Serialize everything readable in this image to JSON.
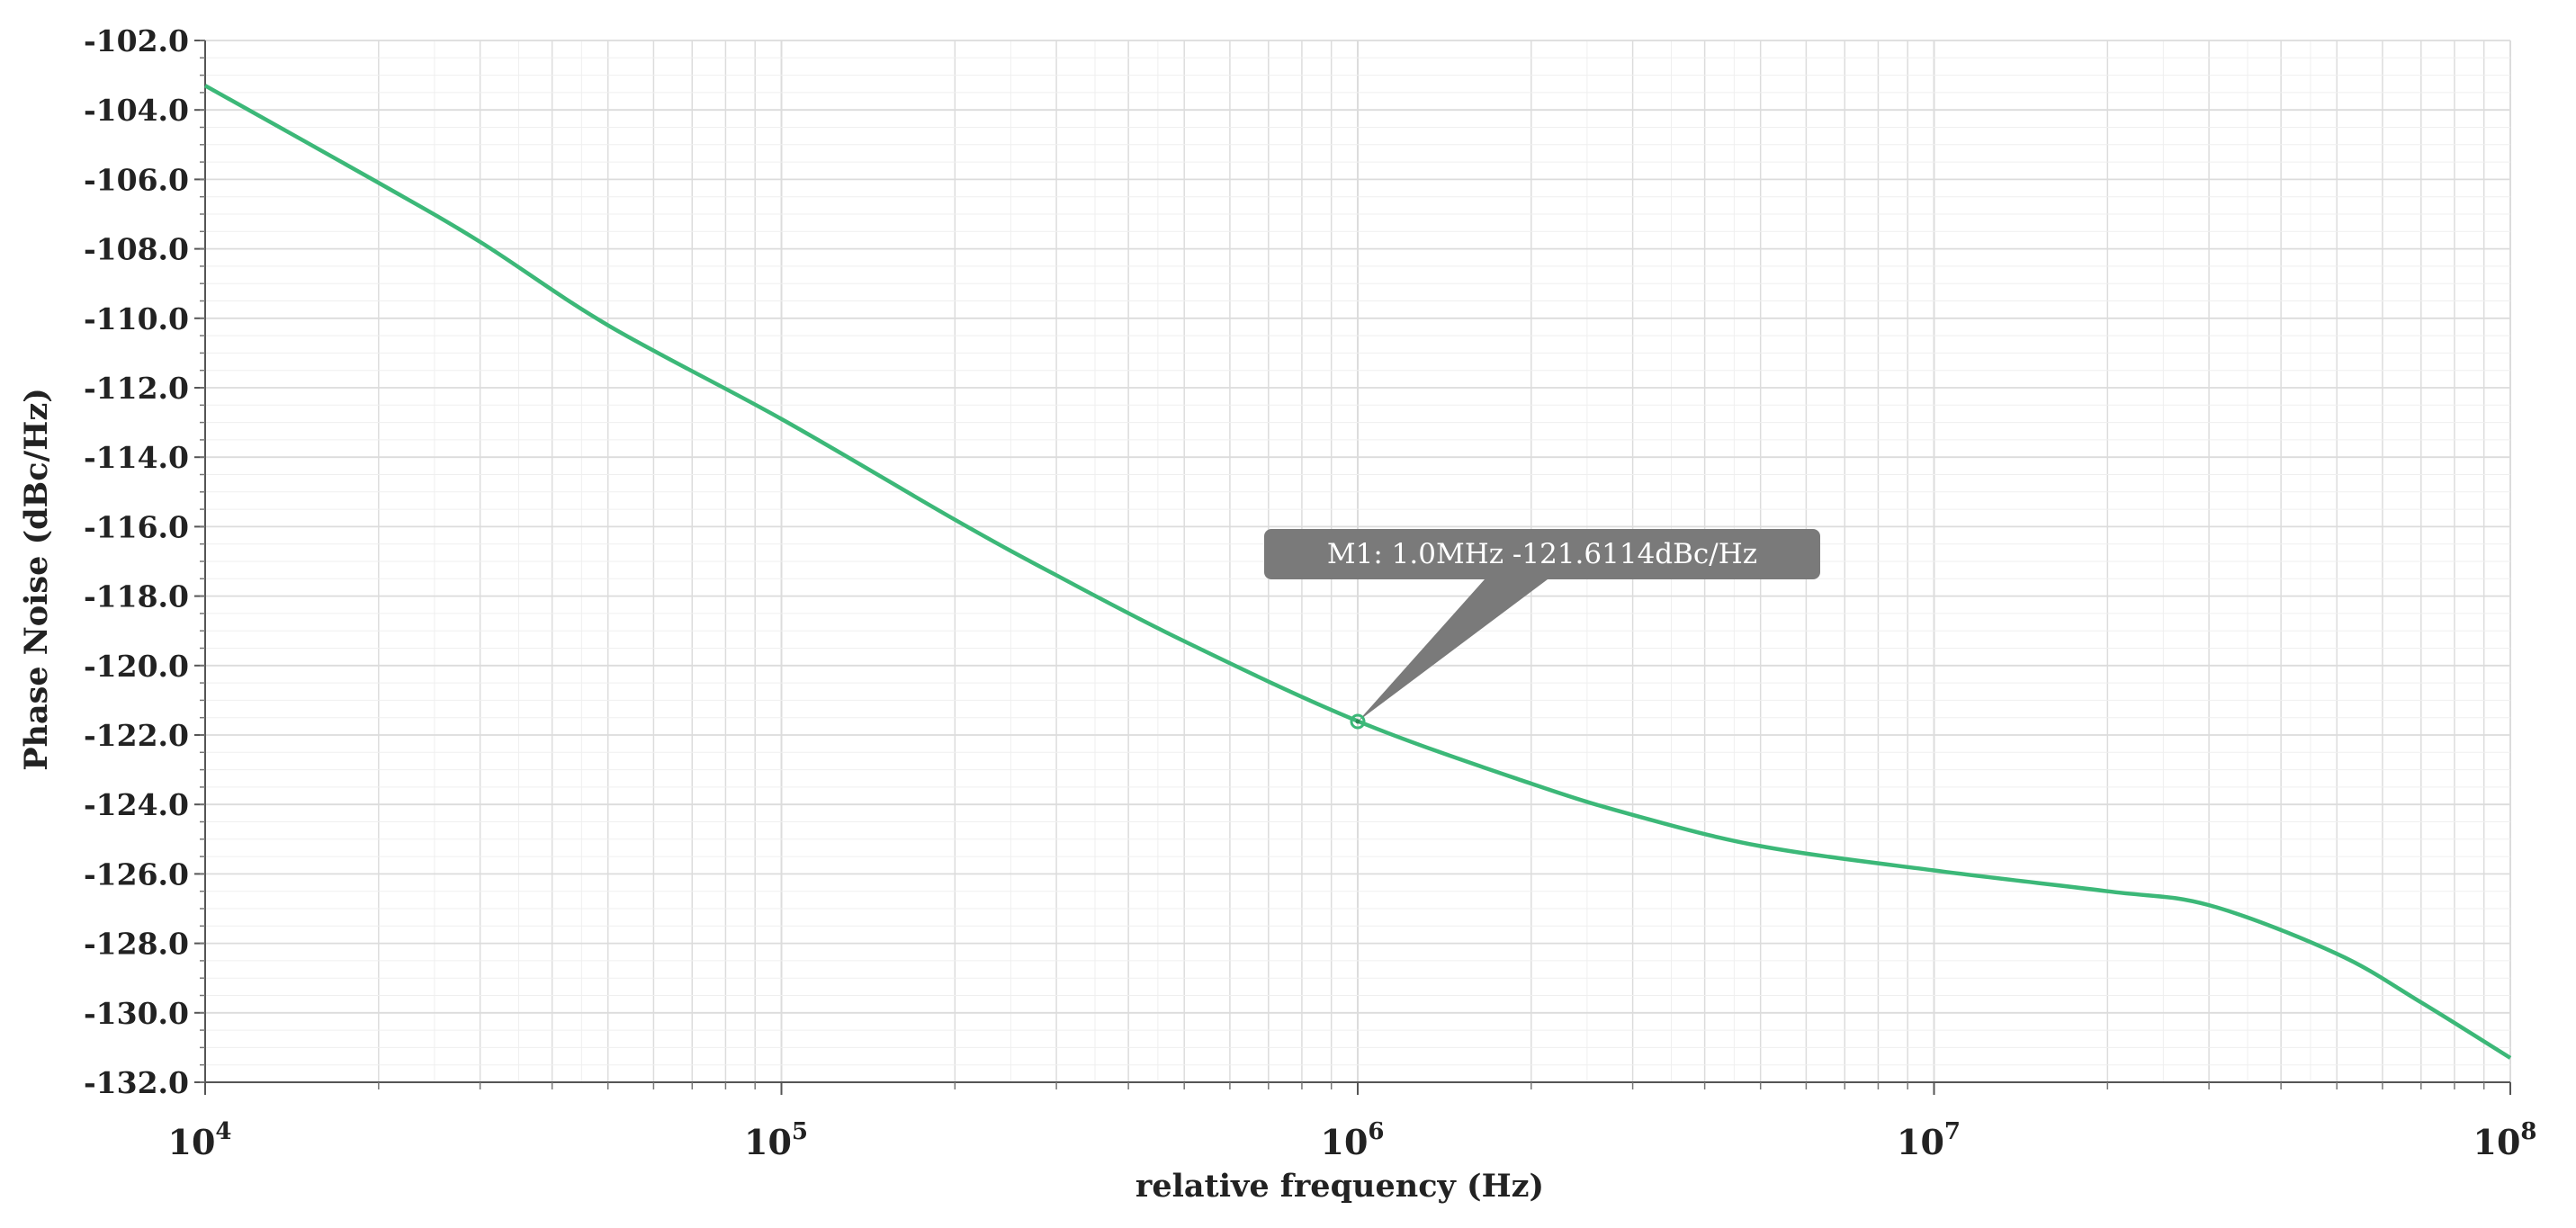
{
  "chart_data": {
    "type": "line",
    "title": "",
    "xlabel": "relative frequency (Hz)",
    "ylabel": "Phase Noise (dBc/Hz)",
    "xscale": "log",
    "xlim": [
      10000,
      100000000
    ],
    "ylim": [
      -132.0,
      -102.0
    ],
    "grid": true,
    "legend": "none",
    "x_ticks": [
      {
        "base": "10",
        "exp": "4"
      },
      {
        "base": "10",
        "exp": "5"
      },
      {
        "base": "10",
        "exp": "6"
      },
      {
        "base": "10",
        "exp": "7"
      },
      {
        "base": "10",
        "exp": "8"
      }
    ],
    "y_ticks": [
      "-102.0",
      "-104.0",
      "-106.0",
      "-108.0",
      "-110.0",
      "-112.0",
      "-114.0",
      "-116.0",
      "-118.0",
      "-120.0",
      "-122.0",
      "-124.0",
      "-126.0",
      "-128.0",
      "-130.0",
      "-132.0"
    ],
    "series": [
      {
        "color": "#3cb878",
        "x": [
          10000,
          20000,
          30000,
          50000,
          100000,
          200000,
          300000,
          500000,
          1000000,
          2000000,
          3000000,
          5000000,
          10000000,
          20000000,
          30000000,
          50000000,
          70000000,
          100000000
        ],
        "y": [
          -103.3,
          -106.1,
          -107.8,
          -110.2,
          -112.9,
          -115.8,
          -117.4,
          -119.3,
          -121.6,
          -123.4,
          -124.3,
          -125.2,
          -125.9,
          -126.5,
          -126.9,
          -128.3,
          -129.7,
          -131.3
        ]
      }
    ],
    "annotations": [
      {
        "label": "M1: 1.0MHz -121.6114dBc/Hz",
        "x": 1000000,
        "y": -121.6114
      }
    ]
  },
  "colors": {
    "line": "#3cb878",
    "marker_box": "#7a7a7a",
    "grid_major": "#dcdcdc",
    "grid_minor": "#efefef"
  }
}
